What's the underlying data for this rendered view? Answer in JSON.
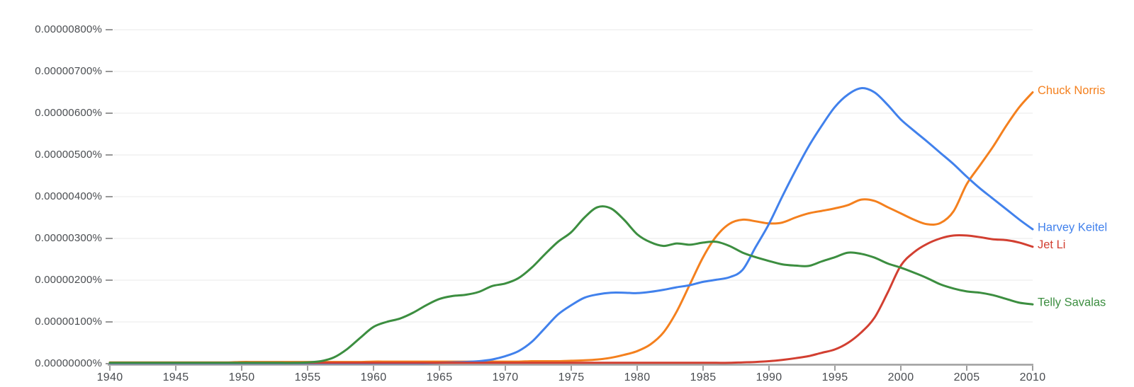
{
  "chart_data": {
    "type": "line",
    "title": "",
    "xlabel": "",
    "ylabel": "",
    "grid": true,
    "legend_position": "right-of-line-ends",
    "value_unit": "1e-8 percent",
    "ylim": [
      0,
      840
    ],
    "x": [
      1940,
      1941,
      1942,
      1943,
      1944,
      1945,
      1946,
      1947,
      1948,
      1949,
      1950,
      1951,
      1952,
      1953,
      1954,
      1955,
      1956,
      1957,
      1958,
      1959,
      1960,
      1961,
      1962,
      1963,
      1964,
      1965,
      1966,
      1967,
      1968,
      1969,
      1970,
      1971,
      1972,
      1973,
      1974,
      1975,
      1976,
      1977,
      1978,
      1979,
      1980,
      1981,
      1982,
      1983,
      1984,
      1985,
      1986,
      1987,
      1988,
      1989,
      1990,
      1991,
      1992,
      1993,
      1994,
      1995,
      1996,
      1997,
      1998,
      1999,
      2000,
      2001,
      2002,
      2003,
      2004,
      2005,
      2006,
      2007,
      2008,
      2009,
      2010
    ],
    "x_ticks": [
      {
        "label": "1940",
        "value": 1940
      },
      {
        "label": "1945",
        "value": 1945
      },
      {
        "label": "1950",
        "value": 1950
      },
      {
        "label": "1955",
        "value": 1955
      },
      {
        "label": "1960",
        "value": 1960
      },
      {
        "label": "1965",
        "value": 1965
      },
      {
        "label": "1970",
        "value": 1970
      },
      {
        "label": "1975",
        "value": 1975
      },
      {
        "label": "1980",
        "value": 1980
      },
      {
        "label": "1985",
        "value": 1985
      },
      {
        "label": "1990",
        "value": 1990
      },
      {
        "label": "1995",
        "value": 1995
      },
      {
        "label": "2000",
        "value": 2000
      },
      {
        "label": "2005",
        "value": 2005
      },
      {
        "label": "2010",
        "value": 2010
      }
    ],
    "y_ticks": [
      {
        "label": "0.00000000%",
        "value": 0
      },
      {
        "label": "0.00000100%",
        "value": 100
      },
      {
        "label": "0.00000200%",
        "value": 200
      },
      {
        "label": "0.00000300%",
        "value": 300
      },
      {
        "label": "0.00000400%",
        "value": 400
      },
      {
        "label": "0.00000500%",
        "value": 500
      },
      {
        "label": "0.00000600%",
        "value": 600
      },
      {
        "label": "0.00000700%",
        "value": 700
      },
      {
        "label": "0.00000800%",
        "value": 800
      }
    ],
    "series": [
      {
        "name": "Chuck Norris",
        "color": "#f4801e",
        "values": [
          3,
          3,
          3,
          3,
          3,
          3,
          3,
          3,
          3,
          3,
          4,
          4,
          4,
          4,
          4,
          4,
          4,
          4,
          4,
          4,
          5,
          5,
          5,
          5,
          5,
          5,
          5,
          5,
          5,
          5,
          5,
          5,
          6,
          6,
          6,
          7,
          8,
          10,
          14,
          21,
          30,
          46,
          75,
          125,
          190,
          255,
          305,
          335,
          345,
          341,
          336,
          338,
          350,
          360,
          366,
          372,
          380,
          393,
          390,
          375,
          360,
          345,
          334,
          337,
          365,
          430,
          475,
          520,
          570,
          615,
          650
        ]
      },
      {
        "name": "Harvey Keitel",
        "color": "#4181ec",
        "values": [
          1,
          1,
          1,
          1,
          1,
          1,
          1,
          1,
          1,
          1,
          1,
          1,
          1,
          1,
          1,
          1,
          1,
          1,
          1,
          1,
          1,
          1,
          1,
          1,
          1,
          2,
          3,
          4,
          6,
          10,
          18,
          30,
          52,
          85,
          118,
          140,
          158,
          166,
          170,
          170,
          169,
          172,
          177,
          183,
          188,
          196,
          201,
          207,
          225,
          280,
          335,
          400,
          462,
          520,
          570,
          615,
          645,
          660,
          650,
          620,
          585,
          558,
          532,
          505,
          478,
          448,
          420,
          395,
          370,
          345,
          322
        ]
      },
      {
        "name": "Jet Li",
        "color": "#d23f31",
        "values": [
          2,
          2,
          2,
          2,
          2,
          2,
          2,
          2,
          2,
          2,
          2,
          2,
          2,
          2,
          2,
          2,
          2,
          2,
          2,
          2,
          2,
          2,
          2,
          2,
          2,
          2,
          2,
          2,
          2,
          2,
          2,
          2,
          2,
          2,
          2,
          2,
          2,
          2,
          2,
          2,
          2,
          2,
          2,
          2,
          2,
          2,
          2,
          2,
          3,
          4,
          6,
          9,
          13,
          18,
          26,
          34,
          50,
          75,
          110,
          170,
          235,
          267,
          287,
          300,
          307,
          307,
          303,
          298,
          296,
          290,
          280
        ]
      },
      {
        "name": "Telly Savalas",
        "color": "#3c8e40",
        "values": [
          2,
          2,
          2,
          2,
          2,
          2,
          2,
          2,
          2,
          2,
          2,
          2,
          2,
          2,
          2,
          3,
          6,
          15,
          35,
          62,
          88,
          100,
          108,
          122,
          140,
          155,
          162,
          165,
          172,
          186,
          192,
          205,
          230,
          262,
          292,
          315,
          350,
          375,
          372,
          345,
          310,
          291,
          282,
          288,
          285,
          290,
          292,
          282,
          266,
          255,
          246,
          238,
          235,
          234,
          245,
          255,
          266,
          263,
          254,
          240,
          230,
          218,
          205,
          190,
          180,
          173,
          170,
          164,
          155,
          146,
          142
        ]
      }
    ],
    "colors": {
      "axis_label": "#4a4d51",
      "axis_line": "#9e9e9e",
      "tick_dash": "#757575",
      "gridline": "#f1f1f1",
      "background": "#ffffff"
    }
  }
}
